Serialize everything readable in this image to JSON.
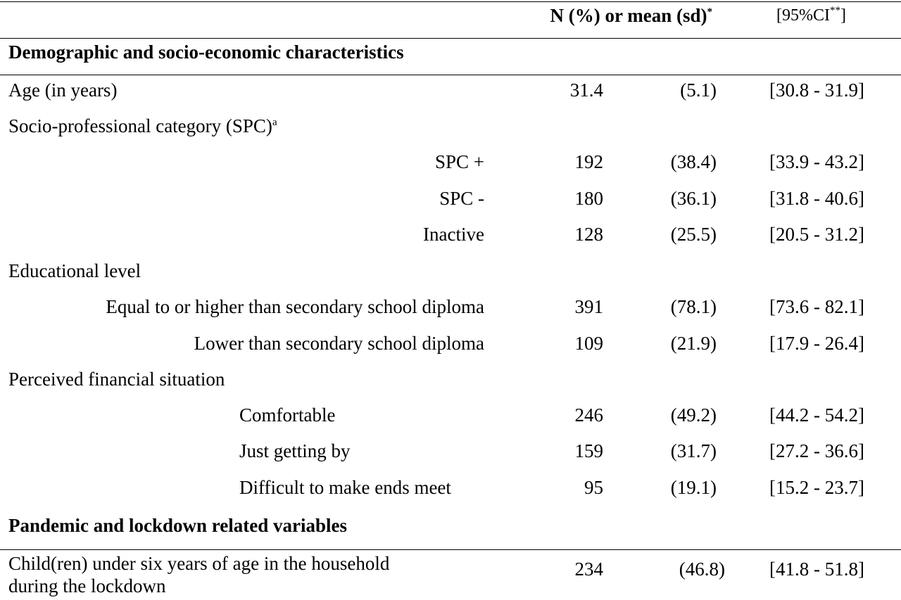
{
  "header": {
    "col_stat": "N (%) or mean (sd)",
    "col_stat_sup": "*",
    "col_ci_open": "[95%CI",
    "col_ci_sup": "**",
    "col_ci_close": "]"
  },
  "sections": {
    "demo_title": "Demographic and socio-economic characteristics",
    "pandemic_title": "Pandemic and lockdown related variables"
  },
  "rows": {
    "age": {
      "label": "Age (in years)",
      "n": "31.4",
      "pct": "(5.1)",
      "ci": "[30.8 - 31.9]"
    },
    "spc_title": "Socio-professional category (SPC)",
    "spc_sup": "a",
    "spc_plus": {
      "label": "SPC +",
      "n": "192",
      "pct": "(38.4)",
      "ci": "[33.9 - 43.2]"
    },
    "spc_minus": {
      "label": "SPC -",
      "n": "180",
      "pct": "(36.1)",
      "ci": "[31.8 - 40.6]"
    },
    "inactive": {
      "label": "Inactive",
      "n": "128",
      "pct": "(25.5)",
      "ci": "[20.5 - 31.2]"
    },
    "edu_title": "Educational level",
    "edu_high": {
      "label": "Equal to or higher than secondary school diploma",
      "n": "391",
      "pct": "(78.1)",
      "ci": "[73.6 - 82.1]"
    },
    "edu_low": {
      "label": "Lower than secondary school diploma",
      "n": "109",
      "pct": "(21.9)",
      "ci": "[17.9 - 26.4]"
    },
    "fin_title": "Perceived financial situation",
    "fin_comf": {
      "label": "Comfortable",
      "n": "246",
      "pct": "(49.2)",
      "ci": "[44.2 - 54.2]"
    },
    "fin_just": {
      "label": "Just getting by",
      "n": "159",
      "pct": "(31.7)",
      "ci": "[27.2 - 36.6]"
    },
    "fin_diff": {
      "label": "Difficult to make ends meet",
      "n": "95",
      "pct": "(19.1)",
      "ci": "[15.2 - 23.7]"
    },
    "child": {
      "label_line1": "Child(ren) under six years of age in the household",
      "label_line2": "during the lockdown",
      "n": "234",
      "pct": "(46.8)",
      "ci": "[41.8 - 51.8]"
    }
  }
}
